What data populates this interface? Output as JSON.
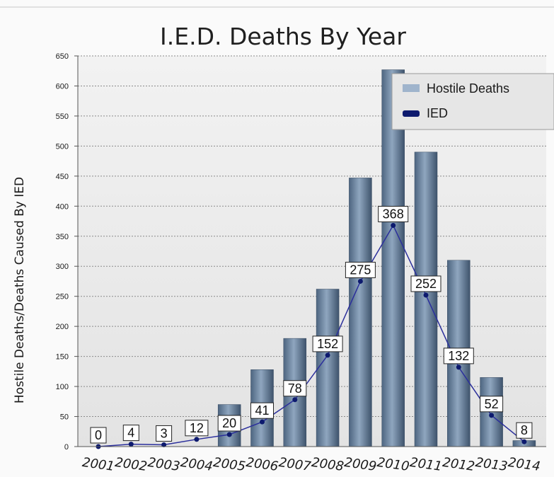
{
  "chart_data": {
    "type": "bar",
    "title": "I.E.D. Deaths By Year",
    "ylabel": "Hostile Deaths/Deaths Caused By IED",
    "xlabel": "",
    "ylim": [
      0,
      650
    ],
    "y_ticks": [
      "0",
      "50",
      "100",
      "150",
      "200",
      "250",
      "300",
      "350",
      "400",
      "450",
      "500",
      "550",
      "600",
      "650"
    ],
    "categories": [
      "2001",
      "2002",
      "2003",
      "2004",
      "2005",
      "2006",
      "2007",
      "2008",
      "2009",
      "2010",
      "2011",
      "2012",
      "2013",
      "2014"
    ],
    "series": [
      {
        "name": "Hostile Deaths",
        "kind": "bar",
        "color": "#7d93ad",
        "values": [
          0,
          0,
          0,
          0,
          70,
          128,
          180,
          262,
          447,
          627,
          490,
          310,
          115,
          10
        ]
      },
      {
        "name": "IED",
        "kind": "line",
        "color": "#1a237e",
        "values": [
          0,
          4,
          3,
          12,
          20,
          41,
          78,
          152,
          275,
          368,
          252,
          132,
          52,
          8
        ],
        "data_labels": [
          "0",
          "4",
          "3",
          "12",
          "20",
          "41",
          "78",
          "152",
          "275",
          "368",
          "252",
          "132",
          "52",
          "8"
        ]
      }
    ],
    "grid": true,
    "legend_position": "top-right",
    "plot_background": "#e9e9e9"
  }
}
